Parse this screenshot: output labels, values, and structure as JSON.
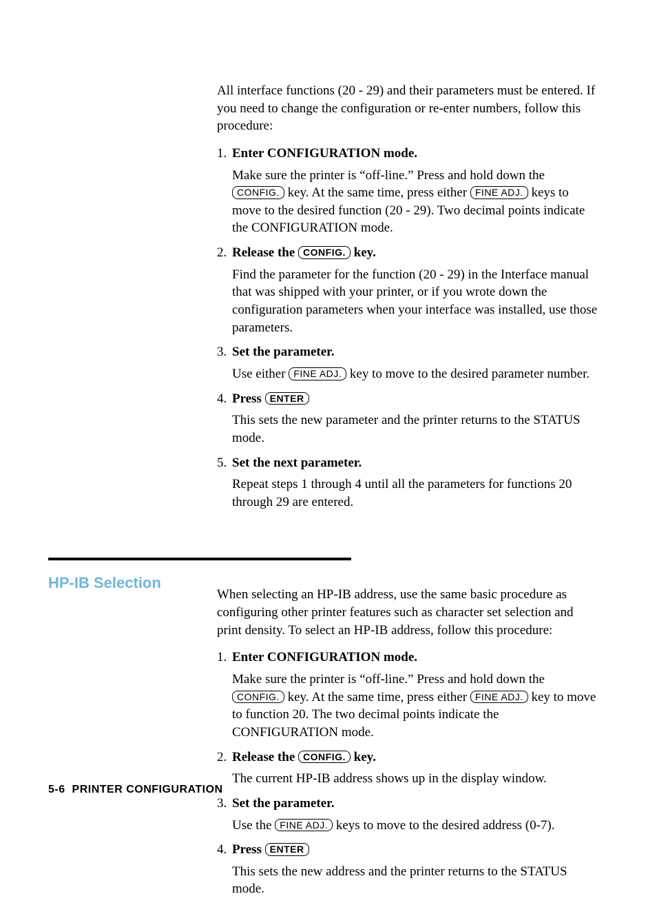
{
  "colors": {
    "heading": "#6fb7d6",
    "text": "#000000",
    "background": "#ffffff"
  },
  "section1": {
    "intro": "All interface functions (20 - 29) and their parameters must be entered. If you need to change the configuration or re-enter numbers, follow this procedure:",
    "steps": [
      {
        "num": "1.",
        "title_pre": "Enter ",
        "title_strong": "CONFIGURATION",
        "title_post": " mode.",
        "body_a": "Make sure the printer is “off-line.” Press and hold down the ",
        "key1": "CONFIG.",
        "body_b": " key. At the same time, press either ",
        "key2": "FINE ADJ.",
        "body_c": " keys to move to the desired function (20 - 29). Two decimal points indicate the CONFIGURATION mode."
      },
      {
        "num": "2.",
        "title_pre": "Release the ",
        "title_key": "CONFIG.",
        "title_post": " key.",
        "body": "Find the parameter for the function (20 - 29) in the Interface manual that was shipped with your printer, or if you wrote down the configuration parameters when your interface was installed, use those parameters."
      },
      {
        "num": "3.",
        "title": "Set the parameter.",
        "body_a": "Use either ",
        "key1": "FINE ADJ.",
        "body_b": " key to move to the desired parameter number."
      },
      {
        "num": "4.",
        "title_pre": "Press ",
        "title_key": "ENTER",
        "body": "This sets the new parameter and the printer returns to the STATUS mode."
      },
      {
        "num": "5.",
        "title": "Set the next parameter.",
        "body": "Repeat steps 1 through 4 until all the parameters for functions 20 through 29 are entered."
      }
    ]
  },
  "section2": {
    "heading": "HP-IB Selection",
    "intro": "When selecting an HP-IB address, use the same basic procedure as configuring other printer features such as character set selection and print density. To select an HP-IB address, follow this procedure:",
    "steps": [
      {
        "num": "1.",
        "title_pre": "Enter ",
        "title_strong": "CONFIGURATION",
        "title_post": " mode.",
        "body_a": "Make sure the printer is “off-line.” Press and hold down the ",
        "key1": "CONFIG.",
        "body_b": " key. At the same time, press either ",
        "key2": "FINE ADJ.",
        "body_c": " key to move to function 20. The two decimal points indicate the CONFIGURATION mode."
      },
      {
        "num": "2.",
        "title_pre": "Release the ",
        "title_key": "CONFIG.",
        "title_post": " key.",
        "body": "The current HP-IB address shows up in the display window."
      },
      {
        "num": "3.",
        "title": "Set the parameter.",
        "body_a": "Use the ",
        "key1": "FINE ADJ.",
        "body_b": " keys to move to the desired address (0-7)."
      },
      {
        "num": "4.",
        "title_pre": "Press ",
        "title_key": "ENTER",
        "body": "This sets the new address and the printer returns to the STATUS mode."
      }
    ]
  },
  "footer": {
    "page": "5-6",
    "label": "PRINTER CONFIGURATION"
  }
}
